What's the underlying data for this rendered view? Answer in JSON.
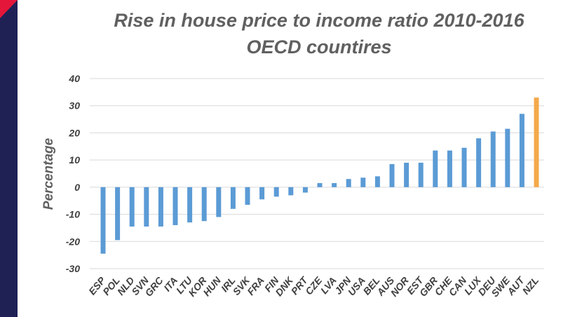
{
  "colors": {
    "left_bar": "#1f2155",
    "left_bar_corner": "#e4163a",
    "bar": "#5b9bd5",
    "highlight_bar": "#f4a94b",
    "gridline": "#d9d9d9"
  },
  "chart_data": {
    "type": "bar",
    "title": "Rise in house price to income ratio 2010-2016",
    "subtitle": "OECD countires",
    "xlabel": "",
    "ylabel": "Percentage",
    "ylim": [
      -30,
      40
    ],
    "yticks": [
      40,
      30,
      20,
      10,
      0,
      -10,
      -20,
      -30
    ],
    "grid": true,
    "legend": "none",
    "highlight_category": "NZL",
    "categories": [
      "ESP",
      "POL",
      "NLD",
      "SVN",
      "GRC",
      "ITA",
      "LTU",
      "KOR",
      "HUN",
      "IRL",
      "SVK",
      "FRA",
      "FIN",
      "DNK",
      "PRT",
      "CZE",
      "LVA",
      "JPN",
      "USA",
      "BEL",
      "AUS",
      "NOR",
      "EST",
      "GBR",
      "CHE",
      "CAN",
      "LUX",
      "DEU",
      "SWE",
      "AUT",
      "NZL"
    ],
    "values": [
      -24.5,
      -19.5,
      -14.5,
      -14.5,
      -14.5,
      -14,
      -13,
      -12.5,
      -11,
      -8,
      -6.5,
      -4.5,
      -3.5,
      -3,
      -2,
      1.5,
      1.5,
      3,
      3.5,
      4,
      8.5,
      9,
      9,
      13.5,
      13.5,
      14.5,
      18,
      20.5,
      21.5,
      27,
      33
    ]
  }
}
